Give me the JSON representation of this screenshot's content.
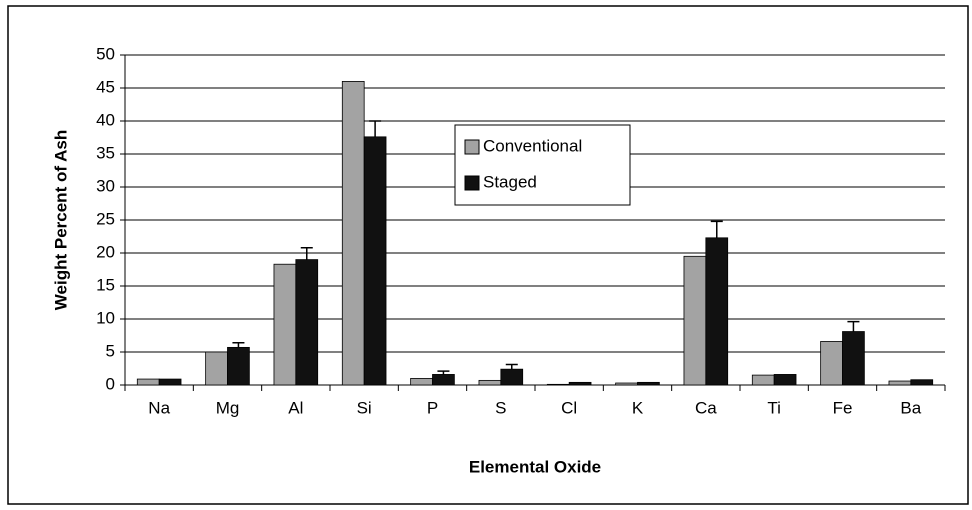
{
  "chart_data": {
    "type": "bar",
    "categories": [
      "Na",
      "Mg",
      "Al",
      "Si",
      "P",
      "S",
      "Cl",
      "K",
      "Ca",
      "Ti",
      "Fe",
      "Ba"
    ],
    "series": [
      {
        "name": "Conventional",
        "color": "#a3a3a3",
        "values": [
          0.9,
          5,
          18.3,
          46,
          1,
          0.7,
          0.1,
          0.3,
          19.5,
          1.5,
          6.6,
          0.6
        ]
      },
      {
        "name": "Staged",
        "color": "#111111",
        "values": [
          0.9,
          5.7,
          19,
          37.6,
          1.6,
          2.4,
          0.4,
          0.4,
          22.3,
          1.6,
          8.1,
          0.8
        ],
        "errors": [
          null,
          0.7,
          1.8,
          2.4,
          0.5,
          0.7,
          null,
          null,
          2.5,
          null,
          1.5,
          null
        ]
      }
    ],
    "xlabel": "Elemental Oxide",
    "ylabel": "Weight Percent of Ash",
    "ylim": [
      0,
      50
    ],
    "yticks": [
      0,
      5,
      10,
      15,
      20,
      25,
      30,
      35,
      40,
      45,
      50
    ],
    "grid": true
  }
}
